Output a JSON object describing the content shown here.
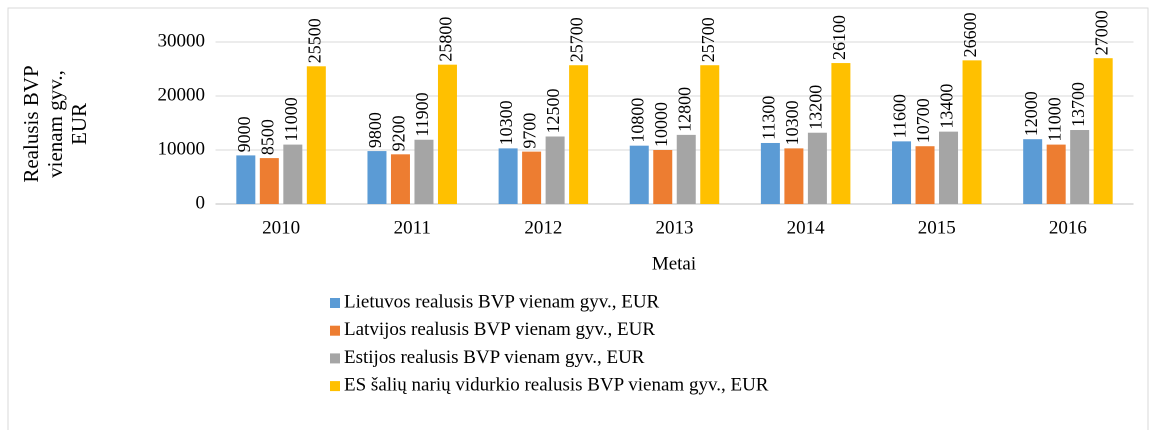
{
  "chart_data": {
    "type": "bar",
    "categories": [
      "2010",
      "2011",
      "2012",
      "2013",
      "2014",
      "2015",
      "2016"
    ],
    "series": [
      {
        "name": "Lietuvos realusis BVP vienam gyv., EUR",
        "color": "#5b9bd5",
        "values": [
          9000,
          9800,
          10300,
          10800,
          11300,
          11600,
          12000
        ]
      },
      {
        "name": "Latvijos realusis BVP vienam gyv., EUR",
        "color": "#ed7d31",
        "values": [
          8500,
          9200,
          9700,
          10000,
          10300,
          10700,
          11000
        ]
      },
      {
        "name": "Estijos realusis BVP vienam gyv., EUR",
        "color": "#a5a5a5",
        "values": [
          11000,
          11900,
          12500,
          12800,
          13200,
          13400,
          13700
        ]
      },
      {
        "name": "ES šalių narių vidurkio realusis BVP vienam gyv., EUR",
        "color": "#ffc000",
        "values": [
          25500,
          25800,
          25700,
          25700,
          26100,
          26600,
          27000
        ]
      }
    ],
    "x_label": "Metai",
    "y_label": "Realusis BVP vienam gyv., EUR",
    "ylim": [
      0,
      30000
    ],
    "yticks": [
      0,
      10000,
      20000,
      30000
    ],
    "grid": true,
    "legend": "bottom"
  }
}
